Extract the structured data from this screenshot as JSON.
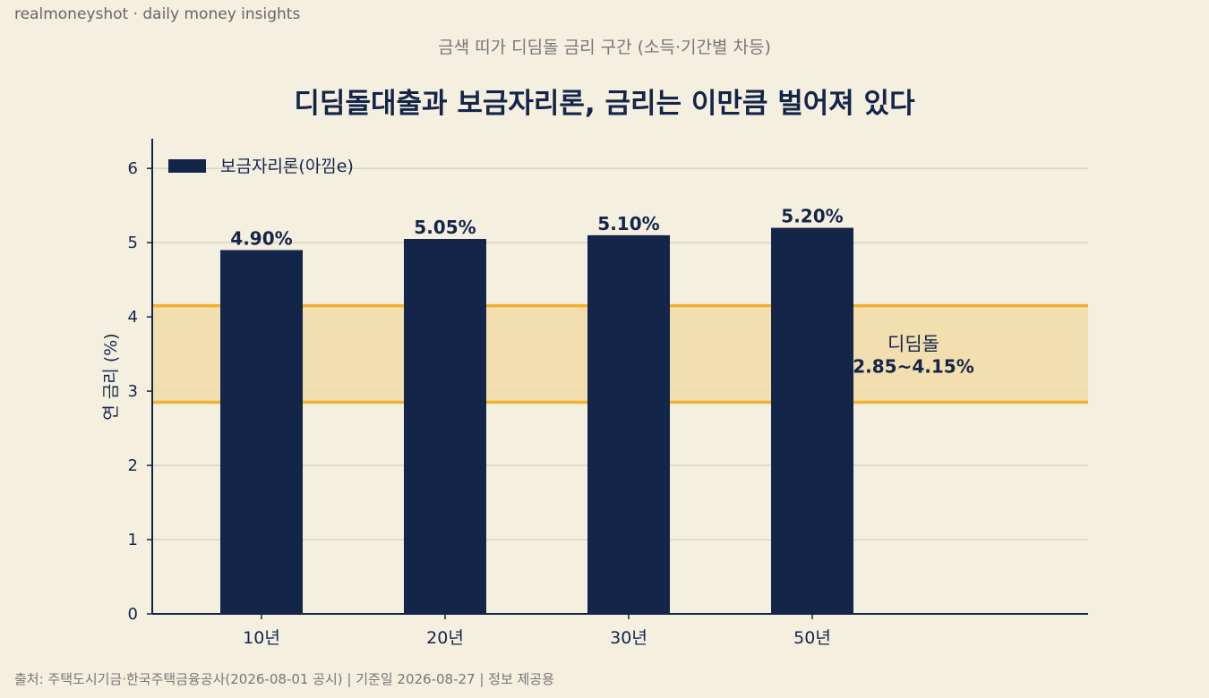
{
  "brand": "realmoneyshot · daily money insights",
  "subtitle": "금색 띠가 디딤돌 금리 구간 (소득·기간별 차등)",
  "footer": "출처: 주택도시기금·한국주택금융공사(2026-08-01 공시)  |  기준일 2026-08-27  |  정보 제공용",
  "colors": {
    "bar": "#14254a",
    "band_fill": "#f2dcaa",
    "band_line": "#f0b22f",
    "background": "#f5efe0"
  },
  "chart_data": {
    "type": "bar",
    "title": "디딤돌대출과 보금자리론, 금리는 이만큼 벌어져 있다",
    "categories": [
      "10년",
      "20년",
      "30년",
      "50년"
    ],
    "series": [
      {
        "name": "보금자리론(아낌e)",
        "values": [
          4.9,
          5.05,
          5.1,
          5.2
        ],
        "labels": [
          "4.90%",
          "5.05%",
          "5.10%",
          "5.20%"
        ]
      }
    ],
    "ylabel": "연 금리 (%)",
    "xlabel": "",
    "ylim": [
      0,
      6.4
    ],
    "yticks": [
      0,
      1,
      2,
      3,
      4,
      5,
      6
    ],
    "grid": true,
    "legend": "top-left",
    "band": {
      "name": "디딤돌",
      "range": [
        2.85,
        4.15
      ],
      "label": "2.85~4.15%"
    }
  }
}
